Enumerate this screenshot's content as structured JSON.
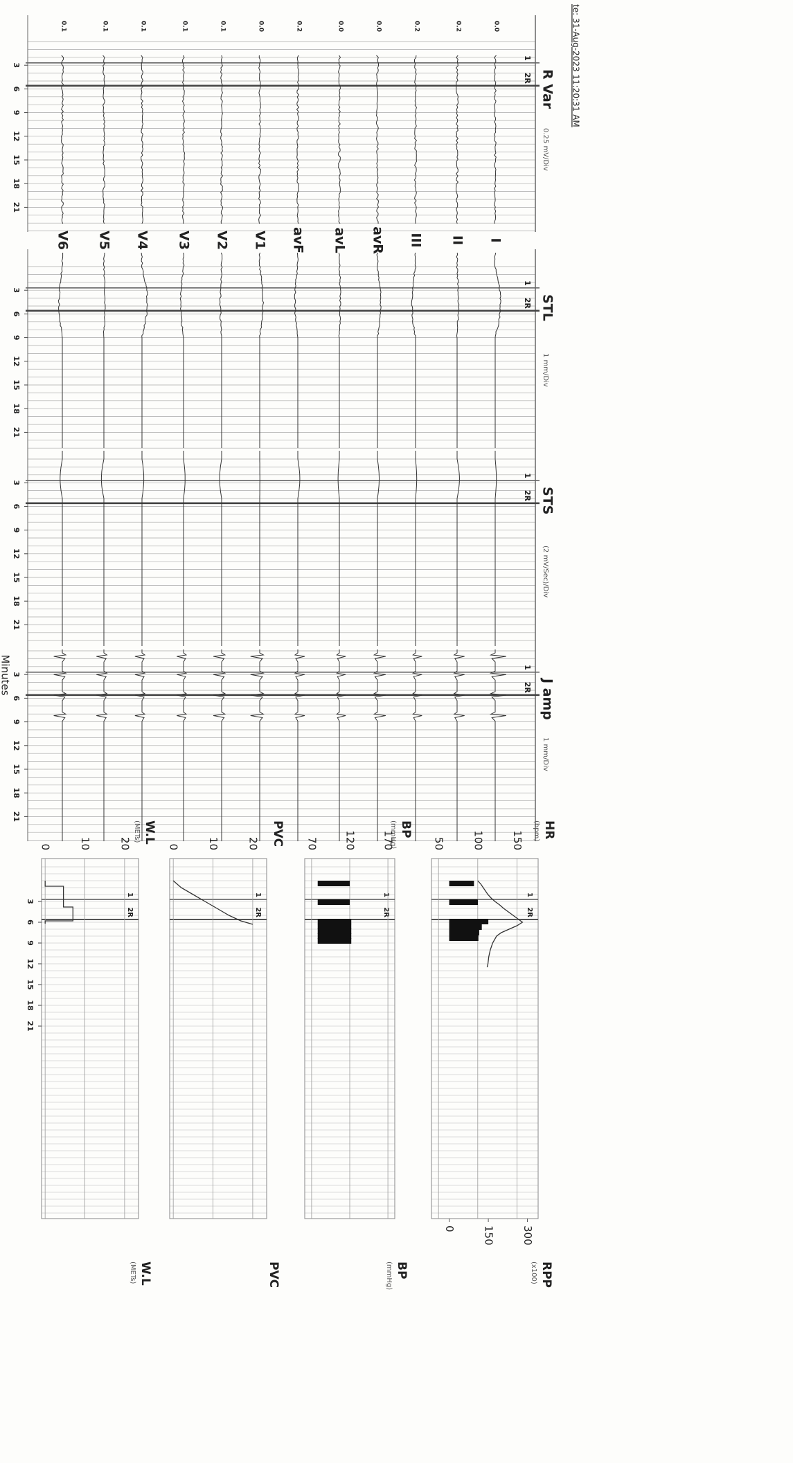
{
  "header": {
    "date": "te: 31-Aug-2023 11:20:31 AM"
  },
  "columns": [
    {
      "title": "R Var",
      "scale": "0.25 mV/Div"
    },
    {
      "title": "STL",
      "scale": "1 mm/Div"
    },
    {
      "title": "STS",
      "scale": "(2 mV/Sec)/Div"
    },
    {
      "title": "J amp",
      "scale": "1 mm/Div"
    }
  ],
  "leads": [
    "I",
    "II",
    "III",
    "avR",
    "avL",
    "avF",
    "V1",
    "V2",
    "V3",
    "V4",
    "V5",
    "V6"
  ],
  "rvar_baselines": [
    "0.0",
    "0.2",
    "0.2",
    "0.0",
    "0.0",
    "0.2",
    "0.0",
    "0.1",
    "0.1",
    "0.1",
    "0.1",
    "0.1"
  ],
  "minute_ticks": [
    3,
    6,
    9,
    12,
    15,
    18,
    21
  ],
  "x_label": "Minutes",
  "stage_markers": [
    {
      "label": "1",
      "minute": 2.7
    },
    {
      "label": "2R",
      "minute": 5.6
    }
  ],
  "trends": {
    "hr": {
      "title": "HR",
      "unit": "(bpm)",
      "ylim": [
        41,
        177
      ],
      "yticks": [
        150,
        100,
        50
      ],
      "minutes": [
        0,
        0.5,
        1,
        1.5,
        2,
        2.5,
        3,
        3.5,
        4,
        4.5,
        5,
        5.5,
        6,
        6.5,
        7,
        7.5,
        8,
        9,
        10,
        11,
        12,
        12.5
      ],
      "values": [
        100,
        104,
        107,
        110,
        113,
        117,
        122,
        128,
        133,
        139,
        145,
        151,
        157,
        150,
        140,
        130,
        124,
        119,
        116,
        114,
        113,
        112
      ]
    },
    "rpp": {
      "title": "RPP",
      "unit": "(x100)",
      "ylim": [
        -68,
        341
      ],
      "yticks": [
        300,
        150,
        0
      ],
      "bars": [
        {
          "minute": 0.4,
          "value": 95
        },
        {
          "minute": 3.1,
          "value": 110
        },
        {
          "minute": 5.9,
          "value": 150
        },
        {
          "minute": 6.7,
          "value": 125
        },
        {
          "minute": 7.5,
          "value": 115
        },
        {
          "minute": 8.3,
          "value": 112
        }
      ]
    },
    "bp": {
      "title": "BP",
      "unit": "(mmHg)",
      "ylim": [
        61,
        179
      ],
      "yticks": [
        170,
        120,
        70
      ],
      "bars": [
        {
          "minute": 0.4,
          "systolic": 120,
          "diastolic": 78
        },
        {
          "minute": 3.1,
          "systolic": 120,
          "diastolic": 78
        },
        {
          "minute": 5.9,
          "systolic": 122,
          "diastolic": 78
        },
        {
          "minute": 6.6,
          "systolic": 122,
          "diastolic": 78
        },
        {
          "minute": 7.3,
          "systolic": 122,
          "diastolic": 78
        },
        {
          "minute": 8.0,
          "systolic": 122,
          "diastolic": 78
        },
        {
          "minute": 8.7,
          "systolic": 122,
          "diastolic": 78
        }
      ]
    },
    "pvc": {
      "title": "PVC",
      "ylim": [
        -0.9,
        23.5
      ],
      "yticks": [
        20,
        10,
        0
      ],
      "minutes": [
        0,
        1,
        2,
        3,
        4,
        5,
        5.8,
        6.3
      ],
      "values": [
        0,
        2,
        5,
        8,
        11,
        14,
        17,
        20
      ]
    },
    "wl": {
      "title": "W.L",
      "unit": "(METs)",
      "ylim": [
        -0.9,
        23.5
      ],
      "yticks": [
        20,
        10,
        0
      ],
      "minutes": [
        0,
        0.8,
        0.8,
        3.8,
        3.8,
        5.8,
        5.8,
        6.2
      ],
      "values": [
        0,
        0,
        4.6,
        4.6,
        7,
        7,
        0,
        0
      ]
    }
  }
}
